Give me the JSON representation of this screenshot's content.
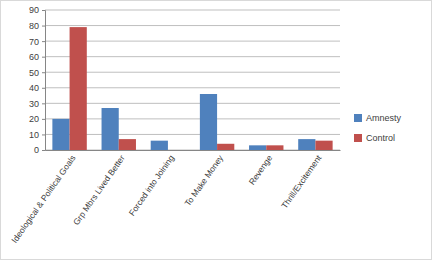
{
  "chart_data": {
    "type": "bar",
    "categories": [
      "Ideological & Political Goals",
      "Grp Mbrs Lived Better",
      "Forced into Joining",
      "To Make Money",
      "Revenge",
      "Thrill/Excitement"
    ],
    "series": [
      {
        "name": "Amnesty",
        "color": "#4f81bd",
        "values": [
          20,
          27,
          6,
          36,
          3,
          7
        ]
      },
      {
        "name": "Control",
        "color": "#c0504d",
        "values": [
          79,
          7,
          0,
          4,
          3,
          6
        ]
      }
    ],
    "ylim": [
      0,
      90
    ],
    "yticks": [
      0,
      10,
      20,
      30,
      40,
      50,
      60,
      70,
      80,
      90
    ],
    "grid": true,
    "legend": "right"
  }
}
